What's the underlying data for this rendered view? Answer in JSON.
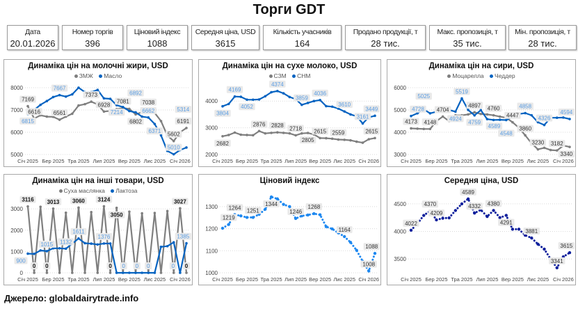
{
  "title": "Торги GDT",
  "kpis": [
    {
      "label": "Дата",
      "value": "20.01.2026"
    },
    {
      "label": "Номер торгів",
      "value": "396"
    },
    {
      "label": "Ціновий індекс",
      "value": "1088"
    },
    {
      "label": "Середня ціна, USD",
      "value": "3615"
    },
    {
      "label": "Кількість учасників",
      "value": "164"
    },
    {
      "label": "Продано продукції, т",
      "value": "28 тис."
    },
    {
      "label": "Макс. пропозиція, т",
      "value": "35 тис."
    },
    {
      "label": "Мін. пропозиція, т",
      "value": "28 тис."
    }
  ],
  "footer": "Джерело: globaldairytrade.info",
  "chart_data": [
    {
      "type": "line",
      "title": "Динаміка цін на молочні жири, USD",
      "x_tick_labels": [
        "Січ 2025",
        "Бер 2025",
        "Тра 2025",
        "Лип 2025",
        "Вер 2025",
        "Лис 2025",
        "Січ 2026"
      ],
      "ylim": [
        5000,
        8000
      ],
      "yticks": [
        5000,
        6000,
        7000,
        8000
      ],
      "grid": true,
      "legend": "top",
      "series": [
        {
          "name": "ЗМЖ",
          "color": "#7f7f7f",
          "style": "solid",
          "values": [
            7169,
            6616,
            6760,
            6700,
            6690,
            6561,
            6700,
            6830,
            7200,
            7260,
            7373,
            7250,
            6928,
            6960,
            7040,
            7081,
            7050,
            6802,
            6900,
            7038,
            6870,
            6500,
            5850,
            5602,
            6000,
            6191
          ],
          "labeled": [
            0,
            1,
            5,
            10,
            12,
            15,
            17,
            19,
            23,
            25
          ]
        },
        {
          "name": "Масло",
          "color": "#0563c1",
          "style": "solid",
          "values": [
            6815,
            7000,
            7230,
            7400,
            7580,
            7667,
            7600,
            7700,
            8000,
            7800,
            7800,
            7900,
            7520,
            7500,
            7214,
            7130,
            6950,
            6892,
            6700,
            6662,
            6371,
            5860,
            5160,
            5010,
            5200,
            5314
          ],
          "labeled": [
            0,
            5,
            14,
            17,
            19,
            20,
            23,
            25
          ]
        }
      ]
    },
    {
      "type": "line",
      "title": "Динаміка цін на сухе молоко, USD",
      "x_tick_labels": [
        "Січ 2025",
        "Бер 2025",
        "Тра 2025",
        "Лип 2025",
        "Вер 2025",
        "Лис 2025",
        "Січ 2026"
      ],
      "ylim": [
        2000,
        4500
      ],
      "yticks": [
        2000,
        3000,
        4000
      ],
      "grid": true,
      "legend": "top",
      "series": [
        {
          "name": "СЗМ",
          "color": "#7f7f7f",
          "style": "solid",
          "values": [
            2682,
            2730,
            2820,
            2740,
            2730,
            2720,
            2876,
            2790,
            2810,
            2828,
            2810,
            2790,
            2718,
            2790,
            2805,
            2750,
            2615,
            2610,
            2590,
            2559,
            2550,
            2530,
            2480,
            2440,
            2570,
            2615
          ],
          "labeled": [
            0,
            6,
            9,
            12,
            14,
            16,
            19,
            25
          ]
        },
        {
          "name": "СНМ",
          "color": "#0563c1",
          "style": "solid",
          "values": [
            3804,
            3890,
            4169,
            4160,
            4052,
            4050,
            4060,
            4180,
            4330,
            4374,
            4290,
            4150,
            4070,
            3859,
            3930,
            4000,
            4036,
            3810,
            3790,
            3720,
            3610,
            3500,
            3430,
            3161,
            3390,
            3449
          ],
          "labeled": [
            0,
            2,
            4,
            9,
            13,
            16,
            20,
            23,
            25
          ]
        }
      ]
    },
    {
      "type": "line",
      "title": "Динаміка цін на сири, USD",
      "x_tick_labels": [
        "Січ 2025",
        "Бер 2025",
        "Тра 2025",
        "Лип 2025",
        "Вер 2025",
        "Лис 2025",
        "Січ 2026"
      ],
      "ylim": [
        3000,
        6000
      ],
      "yticks": [
        3000,
        4000,
        5000,
        6000
      ],
      "grid": true,
      "legend": "top",
      "series": [
        {
          "name": "Моцарелла",
          "color": "#7f7f7f",
          "style": "solid",
          "values": [
            4173,
            4160,
            4148,
            4148,
            4500,
            4704,
            4500,
            4760,
            4760,
            4800,
            4897,
            4820,
            4800,
            4760,
            4700,
            4650,
            4447,
            4200,
            3860,
            3500,
            3230,
            3300,
            3200,
            3182,
            3400,
            3340
          ],
          "labeled": [
            0,
            3,
            5,
            10,
            13,
            16,
            18,
            20,
            23,
            25
          ]
        },
        {
          "name": "Чеддер",
          "color": "#0563c1",
          "style": "solid",
          "values": [
            4728,
            4850,
            5025,
            4850,
            4920,
            4980,
            5000,
            4924,
            5519,
            5000,
            4759,
            4990,
            4589,
            4550,
            4560,
            4548,
            4700,
            4820,
            4858,
            4760,
            4450,
            4326,
            4650,
            4650,
            4660,
            4594
          ],
          "labeled": [
            0,
            2,
            7,
            8,
            10,
            12,
            15,
            18,
            21,
            25
          ]
        }
      ]
    },
    {
      "type": "line",
      "title": "Динаміка цін на інші товари, USD",
      "x_tick_labels": [
        "Січ 2025",
        "Бер 2025",
        "Тра 2025",
        "Лип 2025",
        "Вер 2025",
        "Лис 2025",
        "Січ 2026"
      ],
      "ylim": [
        0,
        3300
      ],
      "yticks": [
        0,
        1000,
        2000,
        3000
      ],
      "grid": true,
      "legend": "top",
      "series": [
        {
          "name": "Суха маслянка",
          "color": "#7f7f7f",
          "style": "solid",
          "values": [
            3116,
            0,
            3100,
            0,
            3013,
            0,
            2820,
            0,
            3060,
            0,
            2850,
            0,
            3124,
            0,
            3050,
            0,
            2870,
            0,
            2790,
            0,
            2810,
            0,
            2900,
            0,
            3027,
            0
          ],
          "labeled": [
            0,
            1,
            3,
            4,
            8,
            12,
            13,
            14,
            24,
            25
          ]
        },
        {
          "name": "Лактоза",
          "color": "#0563c1",
          "style": "solid",
          "values": [
            900,
            890,
            1050,
            1015,
            1150,
            1150,
            1132,
            1370,
            1611,
            1390,
            1370,
            1330,
            1376,
            1376,
            0,
            0,
            0,
            0,
            0,
            0,
            0,
            1220,
            1250,
            1430,
            0,
            1385
          ],
          "labeled": [
            0,
            3,
            6,
            8,
            12,
            14,
            15,
            19,
            24,
            25
          ]
        }
      ]
    },
    {
      "type": "line",
      "title": "Ціновий індекс",
      "x_tick_labels": [
        "Січ 2025",
        "Бер 2025",
        "Тра 2025",
        "Лип 2025",
        "Вер 2025",
        "Лис 2025",
        "Січ 2026"
      ],
      "ylim": [
        1000,
        1350
      ],
      "yticks": [
        1000,
        1100,
        1200,
        1300
      ],
      "grid": true,
      "legend": "none",
      "series": [
        {
          "color": "#1e88f0",
          "style": "dotted",
          "values": [
            1202,
            1219,
            1264,
            1258,
            1251,
            1251,
            1265,
            1288,
            1344,
            1335,
            1310,
            1300,
            1246,
            1258,
            1262,
            1268,
            1263,
            1209,
            1199,
            1181,
            1164,
            1138,
            1102,
            1052,
            1008,
            1088
          ],
          "labeled": [
            1,
            2,
            5,
            8,
            12,
            15,
            20,
            24,
            25
          ]
        }
      ]
    },
    {
      "type": "line",
      "title": "Середня ціна, USD",
      "x_tick_labels": [
        "Січ 2025",
        "Бер 2025",
        "Тра 2025",
        "Лип 2025",
        "Вер 2025",
        "Лис 2025",
        "Січ 2026"
      ],
      "ylim": [
        3250,
        4650
      ],
      "yticks": [
        3500,
        4000,
        4500
      ],
      "grid": true,
      "legend": "none",
      "series": [
        {
          "color": "#0d1f9c",
          "style": "dotted",
          "values": [
            4022,
            4140,
            4290,
            4370,
            4209,
            4240,
            4245,
            4380,
            4500,
            4589,
            4332,
            4390,
            4270,
            4380,
            4250,
            4291,
            4040,
            4040,
            3930,
            3881,
            3770,
            3680,
            3500,
            3341,
            3540,
            3615
          ],
          "labeled": [
            0,
            3,
            4,
            9,
            10,
            13,
            15,
            19,
            23,
            25
          ]
        }
      ]
    }
  ]
}
